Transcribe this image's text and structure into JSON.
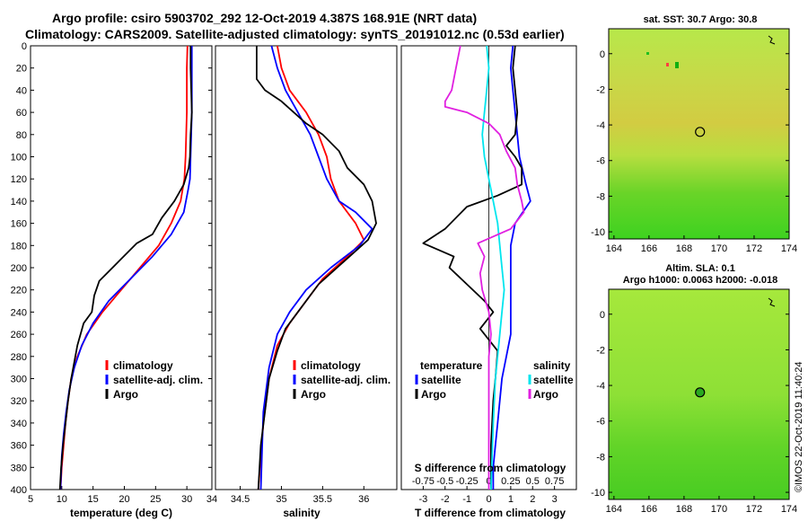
{
  "title": {
    "line1": "Argo profile: csiro 5903702_292 12-Oct-2019 4.387S 168.91E (NRT data)",
    "line2": "Climatology: CARS2009. Satellite-adjusted climatology: synTS_20191012.nc (0.53d earlier)"
  },
  "colors": {
    "climatology": "#ff0000",
    "satellite": "#0000ff",
    "argo": "#000000",
    "sat_salinity": "#00e5ee",
    "argo_salinity": "#e020e0"
  },
  "chart_data": [
    {
      "id": "temperature",
      "type": "line",
      "xlabel": "temperature (deg C)",
      "ylabel": "",
      "xlim": [
        5,
        34
      ],
      "ylim": [
        400,
        0
      ],
      "xticks": [
        5,
        10,
        15,
        20,
        25,
        30
      ],
      "yticks": [
        0,
        20,
        40,
        60,
        80,
        100,
        120,
        140,
        160,
        180,
        200,
        220,
        240,
        260,
        280,
        300,
        320,
        340,
        360,
        380,
        400
      ],
      "legend": [
        "climatology",
        "satellite-adj. clim.",
        "Argo"
      ],
      "series": [
        {
          "name": "climatology",
          "color": "#ff0000",
          "points": [
            [
              30.1,
              0
            ],
            [
              30.0,
              20
            ],
            [
              30.0,
              40
            ],
            [
              30.0,
              60
            ],
            [
              29.9,
              80
            ],
            [
              29.8,
              100
            ],
            [
              29.6,
              120
            ],
            [
              29.0,
              140
            ],
            [
              27.5,
              160
            ],
            [
              25.5,
              180
            ],
            [
              22.5,
              200
            ],
            [
              19.5,
              220
            ],
            [
              16.5,
              240
            ],
            [
              14.0,
              260
            ],
            [
              12.5,
              280
            ],
            [
              11.5,
              300
            ],
            [
              11.0,
              320
            ],
            [
              10.6,
              340
            ],
            [
              10.3,
              360
            ],
            [
              10.0,
              380
            ],
            [
              9.8,
              400
            ]
          ]
        },
        {
          "name": "satellite-adj. clim.",
          "color": "#0000ff",
          "points": [
            [
              30.8,
              0
            ],
            [
              30.8,
              20
            ],
            [
              30.8,
              40
            ],
            [
              30.8,
              60
            ],
            [
              30.7,
              80
            ],
            [
              30.6,
              100
            ],
            [
              30.5,
              120
            ],
            [
              30.2,
              130
            ],
            [
              29.5,
              150
            ],
            [
              27.5,
              170
            ],
            [
              24.5,
              190
            ],
            [
              21.0,
              210
            ],
            [
              17.5,
              230
            ],
            [
              15.0,
              250
            ],
            [
              13.2,
              270
            ],
            [
              12.0,
              290
            ],
            [
              11.2,
              310
            ],
            [
              10.7,
              330
            ],
            [
              10.3,
              350
            ],
            [
              10.0,
              370
            ],
            [
              9.8,
              400
            ]
          ]
        },
        {
          "name": "Argo",
          "color": "#000000",
          "points": [
            [
              30.6,
              0
            ],
            [
              30.6,
              20
            ],
            [
              30.7,
              40
            ],
            [
              30.8,
              60
            ],
            [
              30.6,
              80
            ],
            [
              30.5,
              100
            ],
            [
              30.3,
              110
            ],
            [
              29.5,
              125
            ],
            [
              28.0,
              140
            ],
            [
              26.0,
              155
            ],
            [
              24.5,
              170
            ],
            [
              22.0,
              178
            ],
            [
              19.0,
              195
            ],
            [
              16.0,
              212
            ],
            [
              15.2,
              225
            ],
            [
              14.8,
              240
            ],
            [
              13.5,
              250
            ],
            [
              12.5,
              270
            ],
            [
              11.5,
              300
            ],
            [
              11.0,
              320
            ],
            [
              10.6,
              340
            ],
            [
              10.2,
              360
            ],
            [
              9.9,
              380
            ],
            [
              9.7,
              400
            ]
          ]
        }
      ]
    },
    {
      "id": "salinity",
      "type": "line",
      "xlabel": "salinity",
      "xlim": [
        34.2,
        36.4
      ],
      "ylim": [
        400,
        0
      ],
      "xticks": [
        34.5,
        35,
        35.5,
        36
      ],
      "xticklabels": [
        "34.5",
        "35",
        "35.5",
        "36"
      ],
      "legend": [
        "climatology",
        "satellite-adj. clim.",
        "Argo"
      ],
      "series": [
        {
          "name": "climatology",
          "color": "#ff0000",
          "points": [
            [
              34.95,
              0
            ],
            [
              35.0,
              20
            ],
            [
              35.1,
              40
            ],
            [
              35.3,
              60
            ],
            [
              35.45,
              80
            ],
            [
              35.55,
              100
            ],
            [
              35.6,
              120
            ],
            [
              35.7,
              140
            ],
            [
              35.9,
              160
            ],
            [
              36.0,
              175
            ],
            [
              35.8,
              190
            ],
            [
              35.5,
              210
            ],
            [
              35.3,
              230
            ],
            [
              35.1,
              250
            ],
            [
              34.95,
              270
            ],
            [
              34.85,
              300
            ],
            [
              34.78,
              340
            ],
            [
              34.72,
              400
            ]
          ]
        },
        {
          "name": "satellite-adj. clim.",
          "color": "#0000ff",
          "points": [
            [
              34.88,
              0
            ],
            [
              34.95,
              20
            ],
            [
              35.05,
              40
            ],
            [
              35.2,
              60
            ],
            [
              35.35,
              80
            ],
            [
              35.45,
              100
            ],
            [
              35.55,
              120
            ],
            [
              35.7,
              140
            ],
            [
              35.9,
              150
            ],
            [
              36.1,
              165
            ],
            [
              35.95,
              180
            ],
            [
              35.6,
              200
            ],
            [
              35.3,
              220
            ],
            [
              35.1,
              240
            ],
            [
              34.95,
              260
            ],
            [
              34.85,
              290
            ],
            [
              34.78,
              330
            ],
            [
              34.75,
              400
            ]
          ]
        },
        {
          "name": "Argo",
          "color": "#000000",
          "points": [
            [
              34.7,
              0
            ],
            [
              34.7,
              20
            ],
            [
              34.7,
              30
            ],
            [
              34.8,
              40
            ],
            [
              35.0,
              50
            ],
            [
              35.3,
              70
            ],
            [
              35.5,
              80
            ],
            [
              35.7,
              95
            ],
            [
              35.8,
              110
            ],
            [
              36.0,
              125
            ],
            [
              36.1,
              140
            ],
            [
              36.15,
              160
            ],
            [
              36.05,
              175
            ],
            [
              35.75,
              195
            ],
            [
              35.45,
              215
            ],
            [
              35.25,
              235
            ],
            [
              35.05,
              255
            ],
            [
              34.95,
              275
            ],
            [
              34.85,
              300
            ],
            [
              34.8,
              330
            ],
            [
              34.75,
              360
            ],
            [
              34.72,
              400
            ]
          ]
        }
      ]
    },
    {
      "id": "difference",
      "type": "line",
      "xlabel": "T difference from climatology",
      "xlabel_top": "S difference from climatology",
      "xlim": [
        -4,
        4
      ],
      "ylim": [
        400,
        0
      ],
      "xticks": [
        -3,
        -2,
        -1,
        0,
        1,
        2,
        3
      ],
      "s_xticklabels": [
        "-0.75",
        "-0.5",
        "-0.25",
        "0",
        "0.25",
        "0.5",
        "0.75"
      ],
      "legend_temperature": [
        "temperature",
        "satellite",
        "Argo"
      ],
      "legend_salinity": [
        "salinity",
        "satellite",
        "Argo"
      ],
      "series": [
        {
          "name": "T satellite",
          "color": "#0000ff",
          "points": [
            [
              1.1,
              0
            ],
            [
              1.0,
              20
            ],
            [
              1.1,
              40
            ],
            [
              1.2,
              60
            ],
            [
              1.3,
              80
            ],
            [
              1.4,
              100
            ],
            [
              1.7,
              125
            ],
            [
              1.9,
              140
            ],
            [
              1.2,
              160
            ],
            [
              1.0,
              180
            ],
            [
              1.0,
              200
            ],
            [
              1.0,
              220
            ],
            [
              1.0,
              240
            ],
            [
              1.0,
              260
            ],
            [
              0.8,
              280
            ],
            [
              0.6,
              300
            ],
            [
              0.5,
              320
            ],
            [
              0.4,
              340
            ],
            [
              0.3,
              360
            ],
            [
              0.2,
              380
            ],
            [
              0.2,
              400
            ]
          ]
        },
        {
          "name": "T Argo",
          "color": "#000000",
          "points": [
            [
              1.2,
              0
            ],
            [
              1.1,
              20
            ],
            [
              1.2,
              40
            ],
            [
              1.3,
              60
            ],
            [
              1.2,
              80
            ],
            [
              0.8,
              90
            ],
            [
              1.2,
              100
            ],
            [
              1.5,
              110
            ],
            [
              1.5,
              125
            ],
            [
              0.4,
              135
            ],
            [
              -1.0,
              145
            ],
            [
              -2.0,
              165
            ],
            [
              -3.0,
              178
            ],
            [
              -1.6,
              190
            ],
            [
              -1.8,
              200
            ],
            [
              -1.0,
              215
            ],
            [
              -0.2,
              230
            ],
            [
              0.2,
              240
            ],
            [
              -0.4,
              255
            ],
            [
              0.4,
              275
            ],
            [
              0.3,
              300
            ],
            [
              0.2,
              320
            ],
            [
              0.1,
              360
            ],
            [
              0.1,
              400
            ]
          ]
        },
        {
          "name": "S satellite",
          "color": "#00e5ee",
          "points": [
            [
              -0.1,
              0
            ],
            [
              0.0,
              20
            ],
            [
              -0.1,
              40
            ],
            [
              -0.2,
              60
            ],
            [
              -0.3,
              80
            ],
            [
              -0.2,
              100
            ],
            [
              0.0,
              120
            ],
            [
              0.2,
              140
            ],
            [
              0.4,
              160
            ],
            [
              0.5,
              180
            ],
            [
              0.6,
              200
            ],
            [
              0.7,
              220
            ],
            [
              0.6,
              240
            ],
            [
              0.5,
              260
            ],
            [
              0.4,
              280
            ],
            [
              0.3,
              300
            ],
            [
              0.2,
              340
            ],
            [
              0.1,
              400
            ]
          ]
        },
        {
          "name": "S Argo",
          "color": "#e020e0",
          "points": [
            [
              -1.3,
              0
            ],
            [
              -1.5,
              20
            ],
            [
              -1.7,
              40
            ],
            [
              -2.0,
              50
            ],
            [
              -2.0,
              55
            ],
            [
              -1.0,
              60
            ],
            [
              0.0,
              70
            ],
            [
              0.5,
              80
            ],
            [
              0.8,
              95
            ],
            [
              1.2,
              110
            ],
            [
              1.3,
              125
            ],
            [
              1.5,
              140
            ],
            [
              1.6,
              150
            ],
            [
              1.0,
              165
            ],
            [
              -0.5,
              178
            ],
            [
              -0.2,
              190
            ],
            [
              -0.4,
              205
            ],
            [
              -0.3,
              220
            ],
            [
              0.0,
              240
            ],
            [
              0.1,
              260
            ],
            [
              0.0,
              280
            ],
            [
              0.0,
              320
            ],
            [
              0.0,
              400
            ]
          ]
        }
      ]
    },
    {
      "id": "sst-map",
      "type": "heatmap",
      "title": "sat. SST: 30.7 Argo: 30.8",
      "xlim": [
        163.7,
        174
      ],
      "ylim": [
        -10.4,
        1.4
      ],
      "xticks": [
        164,
        166,
        168,
        170,
        172,
        174
      ],
      "yticks": [
        0,
        -2,
        -4,
        -6,
        -8,
        -10
      ],
      "marker": [
        168.91,
        -4.387
      ]
    },
    {
      "id": "sla-map",
      "type": "heatmap",
      "title": "Altim. SLA: 0.1",
      "subtitle": "Argo h1000: 0.0063 h2000: -0.018",
      "xlim": [
        163.7,
        174
      ],
      "ylim": [
        -10.4,
        1.4
      ],
      "xticks": [
        164,
        166,
        168,
        170,
        172,
        174
      ],
      "yticks": [
        0,
        -2,
        -4,
        -6,
        -8,
        -10
      ],
      "marker": [
        168.91,
        -4.387
      ]
    }
  ],
  "credit": "©IMOS 22-Oct-2019 11:40:24"
}
